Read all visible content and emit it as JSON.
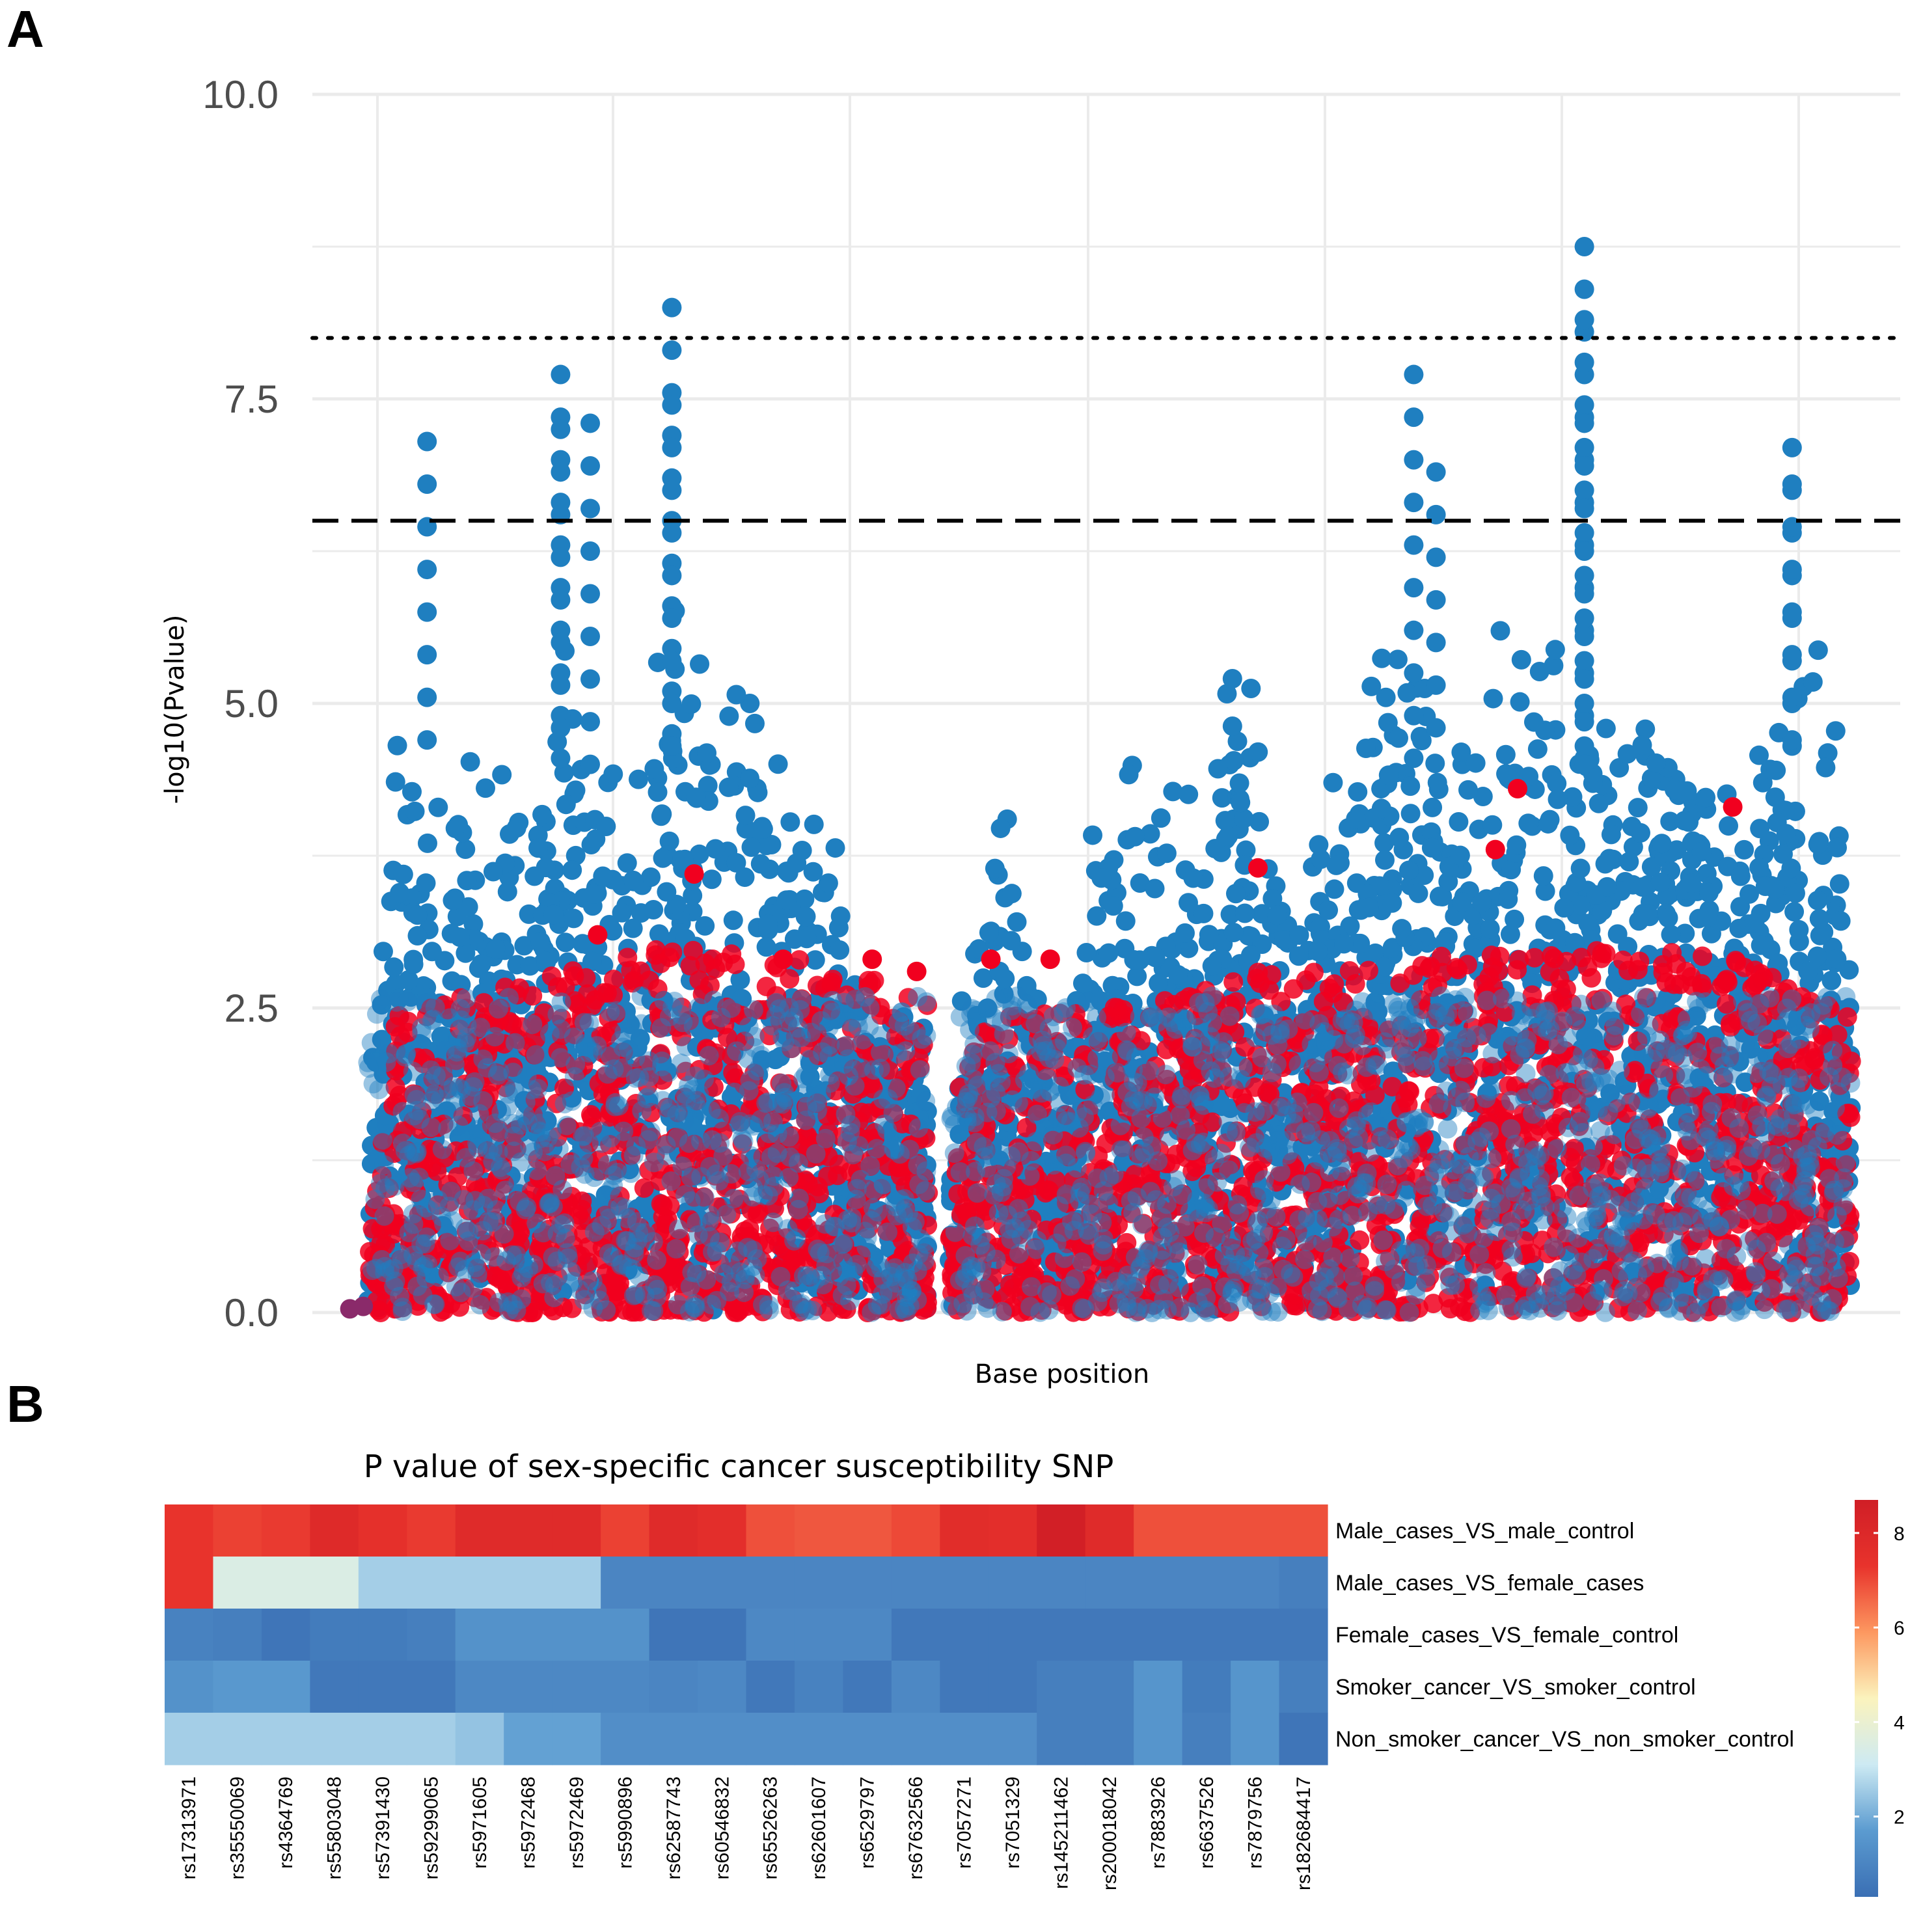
{
  "panel_labels": {
    "a": "A",
    "b": "B"
  },
  "colors": {
    "blue": "#1f7fc0",
    "red": "#f1001f",
    "grid": "#ebebeb",
    "background": "#ffffff"
  },
  "chart_data": [
    {
      "type": "scatter",
      "subtype": "manhattan",
      "title": "",
      "xlabel": "Base position",
      "ylabel": "-log10(Pvalue)",
      "ylim": [
        0,
        10
      ],
      "yticks": [
        0,
        2.5,
        5,
        7.5,
        10
      ],
      "ytick_labels": [
        "0.0",
        "2.5",
        "5.0",
        "7.5",
        "10.0"
      ],
      "x_ticks_shown": false,
      "thresholds": [
        {
          "value": 8.0,
          "style": "dotted"
        },
        {
          "value": 6.5,
          "style": "dashed"
        }
      ],
      "series": [
        {
          "name": "blue",
          "color": "#1f7fc0",
          "peaks": [
            {
              "x": 0.04,
              "y": 7.15
            },
            {
              "x": 0.13,
              "y": 7.7
            },
            {
              "x": 0.13,
              "y": 7.25
            },
            {
              "x": 0.15,
              "y": 7.3
            },
            {
              "x": 0.205,
              "y": 8.25
            },
            {
              "x": 0.205,
              "y": 7.45
            },
            {
              "x": 0.705,
              "y": 7.7
            },
            {
              "x": 0.72,
              "y": 6.9
            },
            {
              "x": 0.82,
              "y": 8.75
            },
            {
              "x": 0.82,
              "y": 8.15
            },
            {
              "x": 0.82,
              "y": 7.3
            },
            {
              "x": 0.96,
              "y": 7.1
            },
            {
              "x": 0.96,
              "y": 6.8
            }
          ],
          "profile": [
            [
              0.0,
              1.5
            ],
            [
              0.02,
              5.2
            ],
            [
              0.06,
              4.5
            ],
            [
              0.08,
              5.3
            ],
            [
              0.11,
              4.0
            ],
            [
              0.13,
              6.1
            ],
            [
              0.15,
              5.0
            ],
            [
              0.18,
              4.5
            ],
            [
              0.205,
              6.0
            ],
            [
              0.23,
              5.5
            ],
            [
              0.26,
              5.5
            ],
            [
              0.28,
              5.0
            ],
            [
              0.31,
              4.2
            ],
            [
              0.33,
              3.1
            ],
            [
              0.35,
              2.5
            ],
            [
              0.375,
              2.7
            ],
            [
              0.385,
              0.5
            ],
            [
              0.4,
              2.6
            ],
            [
              0.43,
              4.6
            ],
            [
              0.46,
              2.0
            ],
            [
              0.5,
              4.7
            ],
            [
              0.53,
              5.3
            ],
            [
              0.56,
              4.0
            ],
            [
              0.59,
              6.0
            ],
            [
              0.62,
              3.8
            ],
            [
              0.65,
              4.5
            ],
            [
              0.68,
              5.6
            ],
            [
              0.7,
              6.2
            ],
            [
              0.72,
              5.6
            ],
            [
              0.76,
              5.8
            ],
            [
              0.8,
              6.2
            ],
            [
              0.83,
              5.0
            ],
            [
              0.86,
              5.4
            ],
            [
              0.89,
              4.8
            ],
            [
              0.92,
              5.0
            ],
            [
              0.96,
              5.9
            ],
            [
              0.985,
              5.7
            ],
            [
              1.0,
              3.0
            ]
          ]
        },
        {
          "name": "red",
          "color": "#f1001f",
          "peaks": [
            {
              "x": 0.155,
              "y": 3.1
            },
            {
              "x": 0.22,
              "y": 3.6
            },
            {
              "x": 0.28,
              "y": 2.9
            },
            {
              "x": 0.34,
              "y": 2.9
            },
            {
              "x": 0.37,
              "y": 2.8
            },
            {
              "x": 0.42,
              "y": 2.9
            },
            {
              "x": 0.46,
              "y": 2.9
            },
            {
              "x": 0.6,
              "y": 3.65
            },
            {
              "x": 0.76,
              "y": 3.8
            },
            {
              "x": 0.775,
              "y": 4.3
            },
            {
              "x": 0.92,
              "y": 4.15
            }
          ],
          "profile": [
            [
              0.0,
              0.4
            ],
            [
              0.02,
              2.5
            ],
            [
              0.1,
              2.7
            ],
            [
              0.2,
              3.0
            ],
            [
              0.3,
              2.9
            ],
            [
              0.38,
              2.6
            ],
            [
              0.385,
              0.5
            ],
            [
              0.4,
              2.4
            ],
            [
              0.5,
              2.5
            ],
            [
              0.6,
              2.8
            ],
            [
              0.7,
              2.9
            ],
            [
              0.8,
              3.0
            ],
            [
              0.9,
              3.0
            ],
            [
              1.0,
              2.5
            ]
          ]
        }
      ]
    },
    {
      "type": "heatmap",
      "title": "P value of sex-specific cancer susceptibility SNP",
      "rows": [
        "Male_cases_VS_male_control",
        "Male_cases_VS_female_cases",
        "Female_cases_VS_female_control",
        "Smoker_cancer_VS_smoker_control",
        "Non_smoker_cancer_VS_non_smoker_control"
      ],
      "columns": [
        "rs17313971",
        "rs35550069",
        "rs4364769",
        "rs55803048",
        "rs57391430",
        "rs59299065",
        "rs5971605",
        "rs5972468",
        "rs5972469",
        "rs5990896",
        "rs62587743",
        "rs60546832",
        "rs65526263",
        "rs62601607",
        "rs6529797",
        "rs67632566",
        "rs7057271",
        "rs7051329",
        "rs145211462",
        "rs200018042",
        "rs7883926",
        "rs6637526",
        "rs7879756",
        "rs182684417"
      ],
      "values": [
        [
          7.3,
          7.1,
          7.2,
          7.9,
          7.5,
          7.2,
          7.8,
          7.8,
          7.8,
          7.1,
          7.8,
          7.6,
          6.9,
          6.8,
          6.8,
          7.0,
          7.7,
          7.6,
          8.6,
          7.8,
          6.9,
          6.9,
          6.9,
          6.9
        ],
        [
          7.3,
          3.5,
          3.5,
          3.5,
          2.6,
          2.6,
          2.6,
          2.6,
          2.6,
          1.0,
          1.0,
          1.0,
          1.0,
          1.0,
          1.0,
          1.0,
          1.0,
          1.0,
          1.0,
          1.0,
          1.0,
          1.0,
          1.0,
          0.8
        ],
        [
          0.9,
          0.8,
          0.5,
          0.7,
          0.7,
          0.8,
          1.4,
          1.4,
          1.4,
          1.4,
          0.5,
          0.5,
          1.1,
          1.1,
          1.1,
          0.6,
          0.6,
          0.6,
          0.6,
          0.6,
          0.6,
          0.6,
          0.6,
          0.6
        ],
        [
          1.4,
          1.6,
          1.6,
          0.6,
          0.6,
          0.6,
          1.1,
          1.1,
          1.1,
          1.1,
          1.0,
          1.1,
          0.6,
          0.9,
          0.6,
          1.1,
          0.6,
          0.6,
          0.8,
          0.8,
          1.5,
          0.7,
          1.5,
          0.8
        ],
        [
          2.6,
          2.6,
          2.6,
          2.6,
          2.6,
          2.6,
          2.4,
          1.8,
          1.8,
          1.3,
          1.3,
          1.3,
          1.3,
          1.3,
          1.3,
          1.3,
          1.3,
          1.3,
          0.8,
          0.8,
          1.5,
          0.8,
          1.5,
          0.5
        ]
      ],
      "colorbar": {
        "ticks": [
          2,
          4,
          6,
          8
        ],
        "range": [
          0.3,
          8.7
        ],
        "colors": [
          "#3a6fb4",
          "#5b9bd0",
          "#cdeaf3",
          "#fbf3bd",
          "#fd9860",
          "#e8332c",
          "#d01e26"
        ]
      }
    }
  ]
}
